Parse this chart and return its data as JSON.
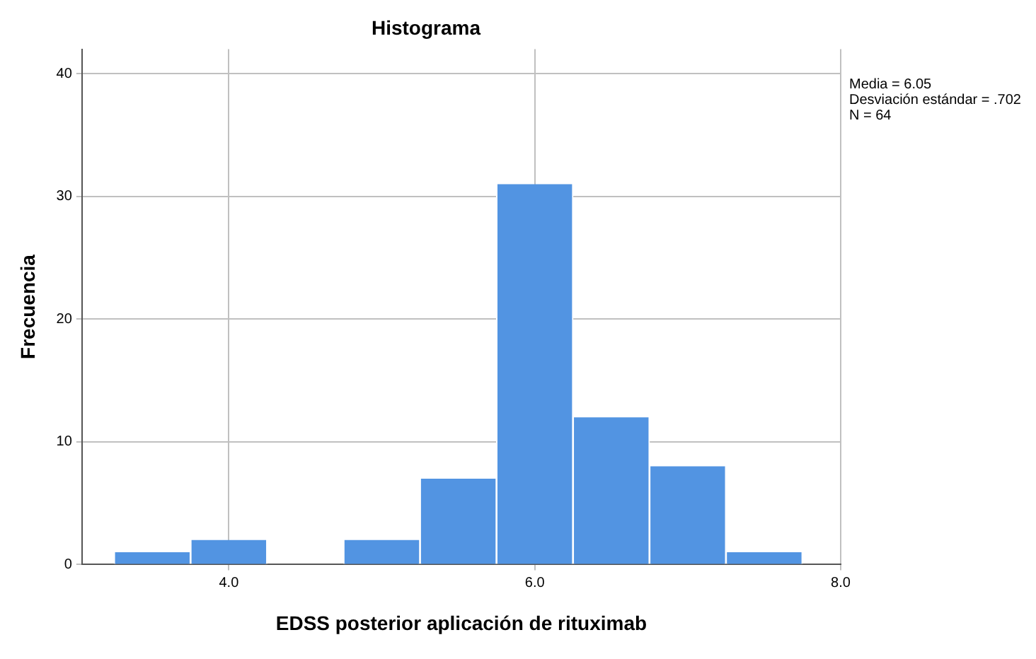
{
  "chart_data": {
    "type": "histogram",
    "title": "Histograma",
    "xlabel": "EDSS posterior aplicación de rituximab",
    "ylabel": "Frecuencia",
    "bins": [
      3.25,
      3.75,
      4.25,
      4.75,
      5.25,
      5.75,
      6.25,
      6.75,
      7.25,
      7.75
    ],
    "values": [
      1,
      2,
      0,
      2,
      7,
      31,
      12,
      8,
      1
    ],
    "color": "#5294e2",
    "xlim": [
      3.04,
      8.0
    ],
    "xticks": [
      {
        "value": 4,
        "label": "4.0"
      },
      {
        "value": 6,
        "label": "6.0"
      },
      {
        "value": 8,
        "label": "8.0"
      }
    ],
    "ylim": [
      0,
      42
    ],
    "yticks": [
      0,
      10,
      20,
      30,
      40
    ],
    "grid": true,
    "annotations": [
      "Media = 6.05",
      "Desviación estándar = .702",
      "N = 64"
    ]
  }
}
